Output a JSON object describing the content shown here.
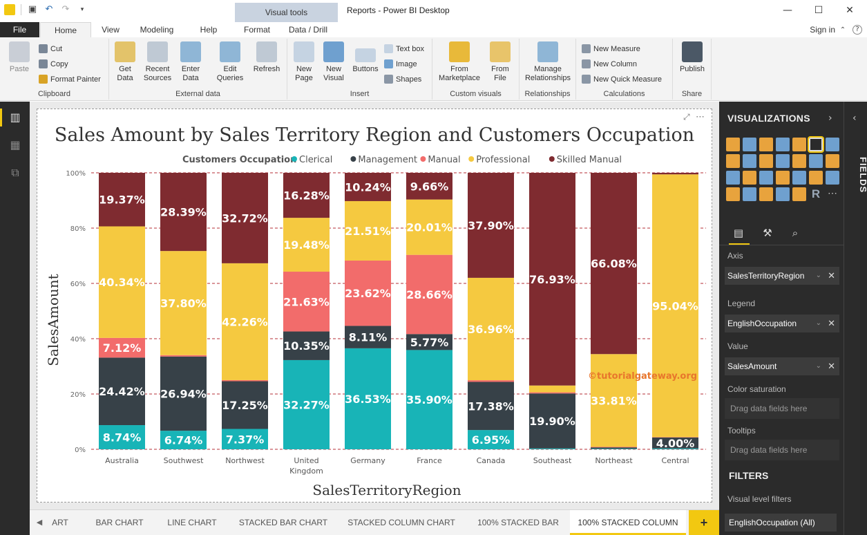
{
  "window": {
    "title": "Reports - Power BI Desktop",
    "context_tab": "Visual tools",
    "signin": "Sign in"
  },
  "ribbon_tabs": [
    "File",
    "Home",
    "View",
    "Modeling",
    "Help",
    "Format",
    "Data / Drill"
  ],
  "ribbon": {
    "clipboard": {
      "label": "Clipboard",
      "paste": "Paste",
      "cut": "Cut",
      "copy": "Copy",
      "format_painter": "Format Painter"
    },
    "external_data": {
      "label": "External data",
      "get_data": [
        "Get",
        "Data"
      ],
      "recent_sources": [
        "Recent",
        "Sources"
      ],
      "enter_data": [
        "Enter",
        "Data"
      ],
      "edit_queries": [
        "Edit",
        "Queries"
      ],
      "refresh": "Refresh"
    },
    "insert": {
      "label": "Insert",
      "new_page": [
        "New",
        "Page"
      ],
      "new_visual": [
        "New",
        "Visual"
      ],
      "buttons": "Buttons",
      "text_box": "Text box",
      "image": "Image",
      "shapes": "Shapes"
    },
    "custom_visuals": {
      "label": "Custom visuals",
      "from_marketplace": [
        "From",
        "Marketplace"
      ],
      "from_file": [
        "From",
        "File"
      ]
    },
    "relationships": {
      "label": "Relationships",
      "manage": [
        "Manage",
        "Relationships"
      ]
    },
    "calculations": {
      "label": "Calculations",
      "new_measure": "New Measure",
      "new_column": "New Column",
      "new_quick_measure": "New Quick Measure"
    },
    "share": {
      "label": "Share",
      "publish": "Publish"
    }
  },
  "chart_data": {
    "type": "bar",
    "stacked": "100%",
    "title": "Sales Amount by Sales Territory Region and Customers Occupation",
    "legend_title": "Customers Occupation",
    "xlabel": "SalesTerritoryRegion",
    "ylabel": "SalesAmount",
    "ylim": [
      0,
      100
    ],
    "yticks": [
      "0%",
      "20%",
      "40%",
      "60%",
      "80%",
      "100%"
    ],
    "categories": [
      "Australia",
      "Southwest",
      "Northwest",
      "United Kingdom",
      "Germany",
      "France",
      "Canada",
      "Southeast",
      "Northeast",
      "Central"
    ],
    "series": [
      {
        "name": "Clerical",
        "color": "#18b4b7",
        "values": [
          8.74,
          6.74,
          7.37,
          32.27,
          36.53,
          35.9,
          6.95,
          0.3,
          0.2,
          0.3
        ]
      },
      {
        "name": "Management",
        "color": "#374148",
        "values": [
          24.42,
          26.94,
          17.25,
          10.35,
          8.11,
          5.77,
          17.38,
          19.9,
          0.5,
          4.0
        ]
      },
      {
        "name": "Manual",
        "color": "#f26c6b",
        "values": [
          7.12,
          0.5,
          0.4,
          21.63,
          23.62,
          28.66,
          0.6,
          0.4,
          0.2,
          0.1
        ]
      },
      {
        "name": "Professional",
        "color": "#f5c940",
        "values": [
          40.34,
          37.8,
          42.26,
          19.48,
          21.51,
          20.01,
          36.96,
          2.47,
          33.81,
          95.04
        ]
      },
      {
        "name": "Skilled Manual",
        "color": "#7f2b30",
        "values": [
          19.37,
          28.39,
          32.72,
          16.28,
          10.24,
          9.66,
          37.9,
          76.93,
          66.08,
          0.56
        ]
      }
    ],
    "data_labels": [
      [
        "8.74%",
        "24.42%",
        "7.12%",
        "40.34%",
        "19.37%"
      ],
      [
        "6.74%",
        "26.94%",
        "",
        "37.80%",
        "28.39%"
      ],
      [
        "7.37%",
        "17.25%",
        "",
        "42.26%",
        "32.72%"
      ],
      [
        "32.27%",
        "10.35%",
        "21.63%",
        "19.48%",
        "16.28%"
      ],
      [
        "36.53%",
        "8.11%",
        "23.62%",
        "21.51%",
        "10.24%"
      ],
      [
        "35.90%",
        "5.77%",
        "28.66%",
        "20.01%",
        "9.66%"
      ],
      [
        "6.95%",
        "17.38%",
        "",
        "36.96%",
        "37.90%"
      ],
      [
        "",
        "19.90%",
        "",
        "",
        "76.93%"
      ],
      [
        "",
        "",
        "",
        "33.81%",
        "66.08%"
      ],
      [
        "",
        "4.00%",
        "",
        "95.04%",
        ""
      ]
    ],
    "watermark": "©tutorialgateway.org",
    "gridlines": "dashed"
  },
  "pages": [
    "ART",
    "BAR CHART",
    "LINE CHART",
    "STACKED BAR CHART",
    "STACKED COLUMN CHART",
    "100% STACKED BAR",
    "100% STACKED COLUMN"
  ],
  "active_page": "100% STACKED COLUMN",
  "viz_pane": {
    "header": "VISUALIZATIONS",
    "fields_tab": "FIELDS",
    "wells": {
      "axis_label": "Axis",
      "axis_value": "SalesTerritoryRegion",
      "legend_label": "Legend",
      "legend_value": "EnglishOccupation",
      "value_label": "Value",
      "value_value": "SalesAmount",
      "color_saturation_label": "Color saturation",
      "color_saturation_drop": "Drag data fields here",
      "tooltips_label": "Tooltips",
      "tooltips_drop": "Drag data fields here"
    },
    "filters": {
      "header": "FILTERS",
      "sub": "Visual level filters",
      "chip": "EnglishOccupation (All)"
    }
  },
  "colors": {
    "accent": "#f2c811",
    "pane_bg": "#2b2b2b",
    "file_tab": "#2b2b2b"
  }
}
